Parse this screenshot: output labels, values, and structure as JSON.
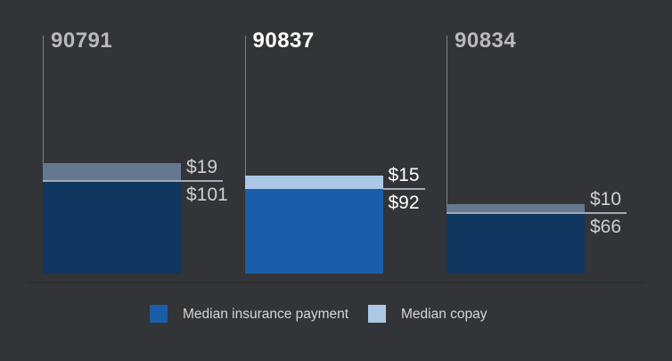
{
  "chart_data": {
    "type": "bar",
    "stacked": true,
    "orientation": "vertical",
    "title": "",
    "xlabel": "",
    "ylabel": "",
    "ylim": [
      0,
      260
    ],
    "grid": false,
    "axes_shown": "left-vertical-line-per-group-only",
    "legend_position": "bottom",
    "categories": [
      "90791",
      "90837",
      "90834"
    ],
    "series": [
      {
        "name": "Median insurance payment",
        "values": [
          101,
          92,
          66
        ]
      },
      {
        "name": "Median copay",
        "values": [
          19,
          15,
          10
        ]
      }
    ],
    "highlighted_category": "90837",
    "groups": [
      {
        "code": "90791",
        "insurance": 101,
        "copay": 19,
        "insurance_label": "$101",
        "copay_label": "$19",
        "highlighted": false
      },
      {
        "code": "90837",
        "insurance": 92,
        "copay": 15,
        "insurance_label": "$92",
        "copay_label": "$15",
        "highlighted": true
      },
      {
        "code": "90834",
        "insurance": 66,
        "copay": 10,
        "insurance_label": "$66",
        "copay_label": "$10",
        "highlighted": false
      }
    ]
  },
  "legend": {
    "items": [
      {
        "label": "Median insurance payment",
        "swatch": "insurance"
      },
      {
        "label": "Median copay",
        "swatch": "copay"
      }
    ]
  },
  "colors": {
    "background": "#333437",
    "insurance_highlight": "#1a5da8",
    "copay_highlight": "#abc9e6",
    "insurance_muted": "#10375f",
    "copay_muted": "#64798f",
    "title_muted": "#b9b9b9",
    "title_highlight": "#ffffff",
    "value_muted": "#cfcfcf",
    "value_highlight": "#ffffff",
    "axis_line": "#7e8286",
    "separator_line": "#a2aab2",
    "legend_text": "#d6d6d6",
    "baseline_shadow": "#2e2f31"
  }
}
